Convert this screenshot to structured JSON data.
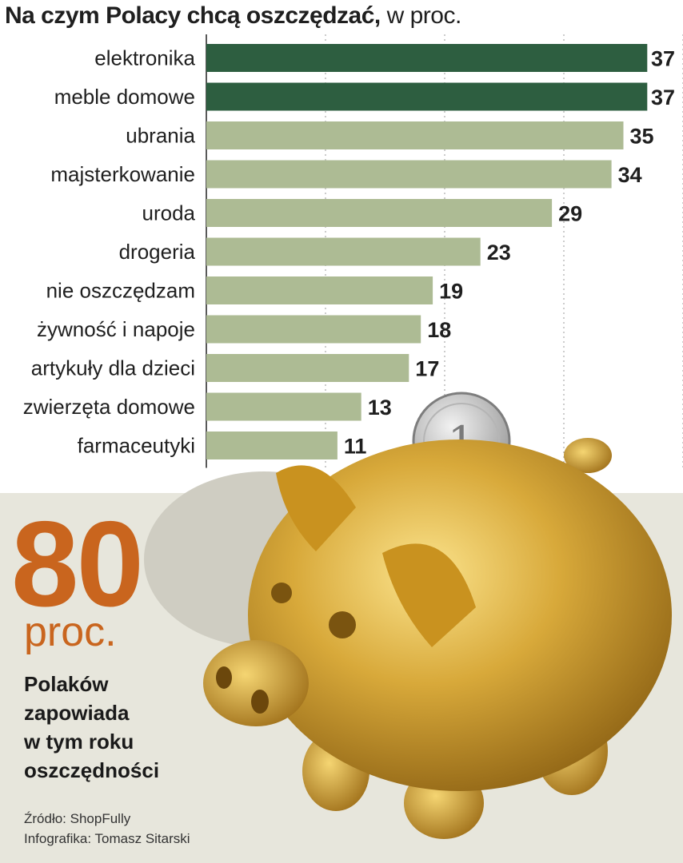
{
  "title": {
    "bold": "Na czym Polacy chcą oszczędzać,",
    "light": "w proc."
  },
  "highlight": {
    "value": "80",
    "unit": "proc.",
    "description": [
      "Polaków",
      "zapowiada",
      "w tym roku",
      "oszczędności"
    ]
  },
  "source": {
    "line1": "Źródło: ShopFully",
    "line2": "Infografika: Tomasz Sitarski"
  },
  "colors": {
    "bar_highlight": "#2d5e40",
    "bar_default": "#adbb94",
    "accent": "#c9651e",
    "panel_background": "#e7e6dc",
    "illustration": "gold piggy bank with coin"
  },
  "chart_data": {
    "type": "bar",
    "orientation": "horizontal",
    "categories": [
      "elektronika",
      "meble domowe",
      "ubrania",
      "majsterkowanie",
      "uroda",
      "drogeria",
      "nie  oszczędzam",
      "żywność i napoje",
      "artykuły dla dzieci",
      "zwierzęta domowe",
      "farmaceutyki"
    ],
    "values": [
      37,
      37,
      35,
      34,
      29,
      23,
      19,
      18,
      17,
      13,
      11
    ],
    "value_labels": [
      "37",
      "37",
      "35",
      "34",
      "29",
      "23",
      "19",
      "18",
      "17",
      "13",
      "11"
    ],
    "highlighted": [
      true,
      true,
      false,
      false,
      false,
      false,
      false,
      false,
      false,
      false,
      false
    ],
    "xlim": [
      0,
      40
    ],
    "grid": true
  }
}
